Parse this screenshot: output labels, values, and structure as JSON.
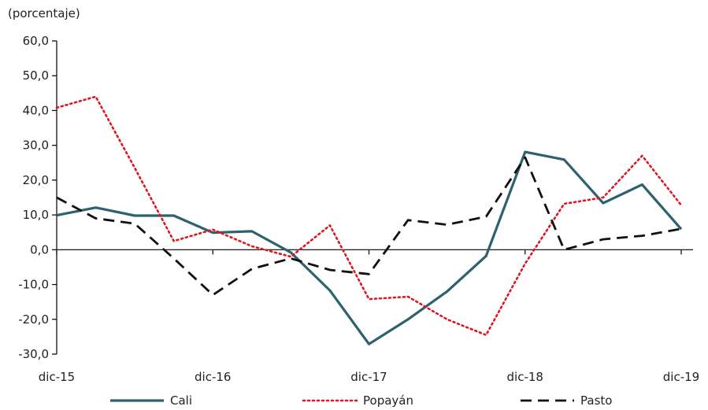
{
  "chart_data": {
    "type": "line",
    "unit_label": "(porcentaje)",
    "x": [
      0,
      1,
      2,
      3,
      4,
      5,
      6,
      7,
      8,
      9,
      10,
      11,
      12,
      13,
      14,
      15,
      16
    ],
    "x_ticks": [
      {
        "x": 0,
        "label": "dic-15"
      },
      {
        "x": 4,
        "label": "dic-16"
      },
      {
        "x": 8,
        "label": "dic-17"
      },
      {
        "x": 12,
        "label": "dic-18"
      },
      {
        "x": 16,
        "label": "dic-19"
      }
    ],
    "ylim": [
      -30,
      60
    ],
    "y_ticks": [
      {
        "v": 60,
        "label": "60,0"
      },
      {
        "v": 50,
        "label": "50,0"
      },
      {
        "v": 40,
        "label": "40,0"
      },
      {
        "v": 30,
        "label": "30,0"
      },
      {
        "v": 20,
        "label": "20,0"
      },
      {
        "v": 10,
        "label": "10,0"
      },
      {
        "v": 0,
        "label": "0,0"
      },
      {
        "v": -10,
        "label": "-10,0"
      },
      {
        "v": -20,
        "label": "-20,0"
      },
      {
        "v": -30,
        "label": "-30,0"
      }
    ],
    "grid": false,
    "legend_position": "bottom",
    "series": [
      {
        "name": "Cali",
        "color": "#2E6170",
        "style": "solid",
        "values": [
          9.9,
          12.1,
          9.8,
          9.8,
          4.9,
          5.3,
          -0.8,
          -11.7,
          -27.1,
          -20.0,
          -12.0,
          -1.8,
          28.1,
          25.9,
          13.4,
          18.7,
          5.9
        ]
      },
      {
        "name": "Popayán",
        "color": "#E0161E",
        "style": "dotted",
        "values": [
          40.8,
          44.0,
          23.5,
          2.5,
          5.8,
          1.0,
          -2.0,
          7.0,
          -14.2,
          -13.5,
          -20.0,
          -24.5,
          -4.0,
          13.2,
          15.0,
          27.0,
          12.8
        ]
      },
      {
        "name": "Pasto",
        "color": "#111111",
        "style": "dashed",
        "values": [
          15.0,
          9.0,
          7.5,
          -2.5,
          -13.0,
          -5.5,
          -2.5,
          -5.8,
          -7.0,
          8.5,
          7.2,
          9.5,
          26.5,
          0.0,
          3.0,
          4.0,
          6.0
        ]
      }
    ]
  }
}
